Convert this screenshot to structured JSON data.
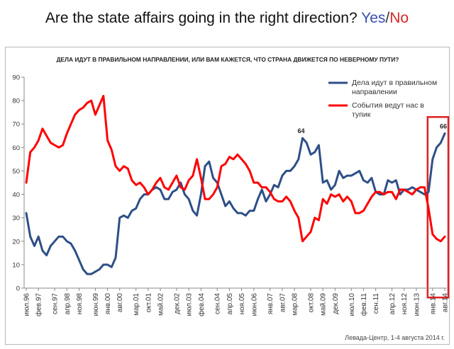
{
  "headline": {
    "text": "Are the state affairs going in the right direction?",
    "yes": "Yes",
    "slash": "/",
    "no": "No"
  },
  "colors": {
    "yes": "#2e4f86",
    "no": "#ff0000",
    "highlight": "#dd2222",
    "axis": "#888888"
  },
  "chart_data": {
    "type": "line",
    "title": "ДЕЛА ИДУТ В ПРАВИЛЬНОМ НАПРАВЛЕНИИ, ИЛИ ВАМ КАЖЕТСЯ, ЧТО СТРАНА ДВИЖЕТСЯ ПО НЕВЕРНОМУ ПУТИ?",
    "source": "Левада-Центр, 1-4 августа 2014 г.",
    "ylim": [
      0,
      90
    ],
    "yticks": [
      0,
      10,
      20,
      30,
      40,
      50,
      60,
      70,
      80,
      90
    ],
    "grid": false,
    "legend_position": "top-right",
    "x_labels": [
      "июл.96",
      "фев.97",
      "сен.97",
      "апр.98",
      "ноя.98",
      "июн.99",
      "янв.00",
      "авг.00",
      "мар.01",
      "окт.01",
      "май.02",
      "дек.02",
      "июл.03",
      "фев.04",
      "сен.04",
      "апр.05",
      "ноя.05",
      "июн.06",
      "янв.07",
      "авг.07",
      "мар.08",
      "окт.08",
      "май.09",
      "дек.09",
      "июл.10",
      "фев.11",
      "сен.11",
      "апр.12",
      "ноя.12",
      "июн.13",
      "янв.14",
      "авг.14"
    ],
    "annotations": [
      {
        "text": "64",
        "label": "мар.08"
      },
      {
        "text": "66",
        "label": "авг.14"
      }
    ],
    "highlight_range": [
      "янв.14",
      "авг.14"
    ],
    "series": [
      {
        "name": "Дела идут в правильном направлении",
        "color": "#2e4f86",
        "values": [
          32,
          22,
          18,
          22,
          16,
          14,
          18,
          20,
          22,
          22,
          20,
          19,
          16,
          12,
          8,
          6,
          6,
          7,
          8,
          10,
          10,
          9,
          13,
          30,
          31,
          30,
          33,
          34,
          38,
          40,
          40,
          42,
          43,
          42,
          38,
          38,
          41,
          42,
          45,
          40,
          38,
          33,
          31,
          40,
          52,
          54,
          47,
          45,
          40,
          35,
          37,
          34,
          32,
          32,
          31,
          33,
          33,
          38,
          42,
          37,
          40,
          44,
          43,
          48,
          50,
          50,
          52,
          55,
          64,
          62,
          57,
          58,
          61,
          45,
          46,
          42,
          44,
          50,
          47,
          48,
          48,
          49,
          50,
          46,
          45,
          47,
          41,
          40,
          40,
          46,
          45,
          46,
          40,
          42,
          42,
          43,
          42,
          41,
          40,
          41,
          55,
          60,
          62,
          66
        ]
      },
      {
        "name": "События ведут нас в тупик",
        "color": "#ff0000",
        "values": [
          45,
          58,
          60,
          63,
          68,
          65,
          62,
          61,
          60,
          61,
          66,
          70,
          74,
          76,
          77,
          79,
          80,
          74,
          78,
          82,
          63,
          59,
          52,
          50,
          52,
          51,
          46,
          44,
          45,
          43,
          40,
          42,
          45,
          47,
          43,
          42,
          45,
          48,
          43,
          42,
          46,
          48,
          55,
          47,
          38,
          38,
          40,
          43,
          52,
          53,
          56,
          55,
          57,
          55,
          53,
          50,
          45,
          45,
          43,
          43,
          41,
          38,
          37,
          37,
          39,
          37,
          33,
          30,
          20,
          22,
          24,
          30,
          29,
          38,
          36,
          40,
          39,
          40,
          37,
          39,
          37,
          32,
          32,
          33,
          36,
          39,
          41,
          41,
          40,
          41,
          41,
          38,
          42,
          42,
          41,
          40,
          42,
          43,
          43,
          34,
          23,
          21,
          20,
          22
        ]
      }
    ]
  }
}
